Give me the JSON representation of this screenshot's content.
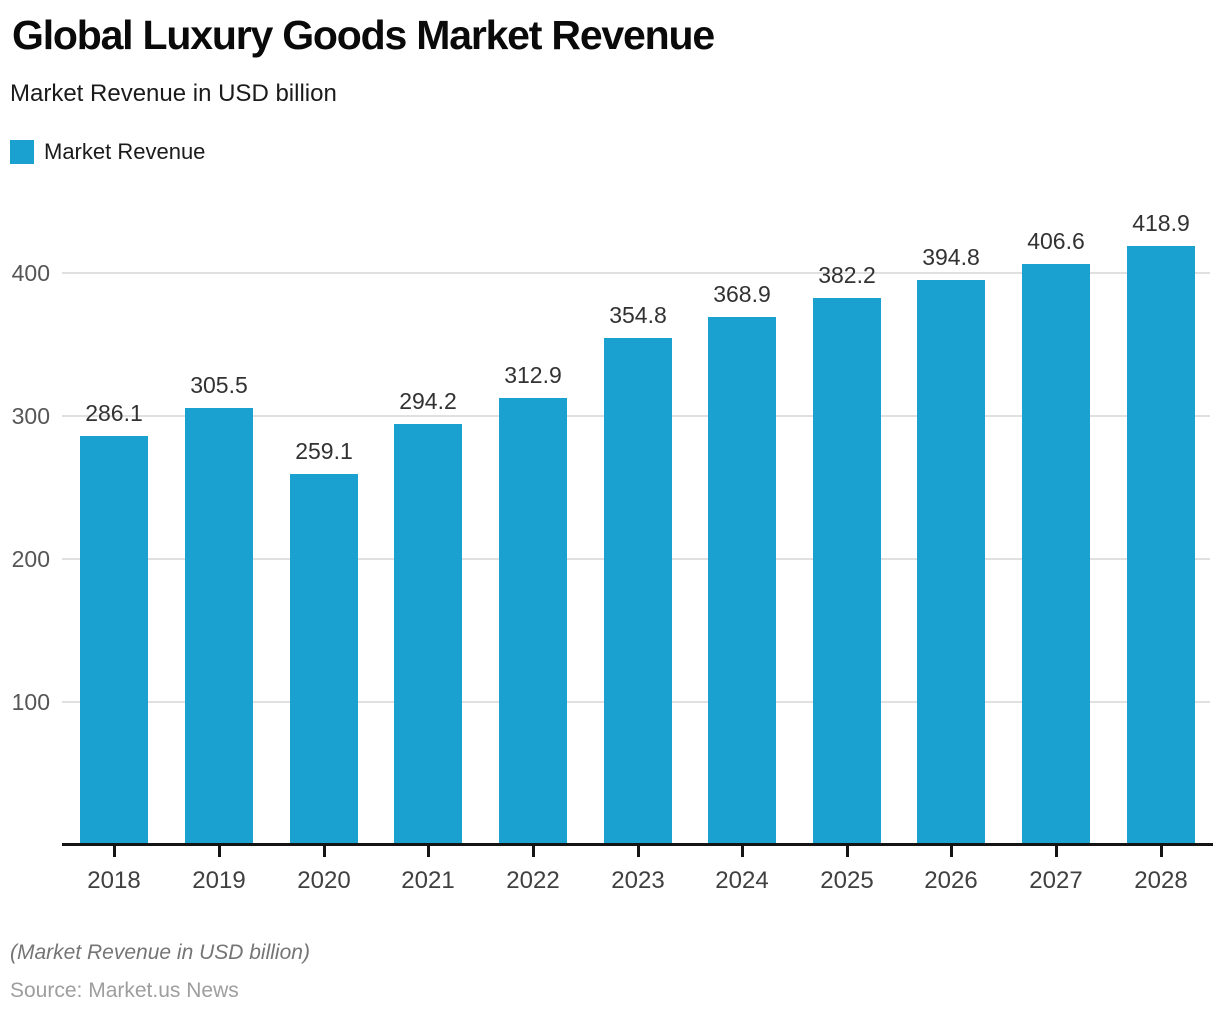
{
  "header": {
    "title": "Global Luxury Goods Market Revenue",
    "subtitle": "Market Revenue in USD billion"
  },
  "legend": {
    "items": [
      {
        "label": "Market Revenue",
        "color": "#1BA1CF"
      }
    ]
  },
  "footer": {
    "caption": "(Market Revenue in USD billion)",
    "source": "Source: Market.us News"
  },
  "chart_data": {
    "type": "bar",
    "title": "Global Luxury Goods Market Revenue",
    "subtitle": "Market Revenue in USD billion",
    "categories": [
      "2018",
      "2019",
      "2020",
      "2021",
      "2022",
      "2023",
      "2024",
      "2025",
      "2026",
      "2027",
      "2028"
    ],
    "series": [
      {
        "name": "Market Revenue",
        "color": "#1BA1CF",
        "values": [
          286.1,
          305.5,
          259.1,
          294.2,
          312.9,
          354.8,
          368.9,
          382.2,
          394.8,
          406.6,
          418.9
        ]
      }
    ],
    "xlabel": "",
    "ylabel": "Market Revenue in USD billion",
    "ylim": [
      0,
      430
    ],
    "yticks": [
      100,
      200,
      300,
      400
    ],
    "grid": true,
    "value_labels_shown": true,
    "legend_position": "top-left",
    "colors": {
      "bar": "#1BA1CF",
      "grid": "#e0e0e0",
      "axis": "#141414",
      "value_label": "#323232",
      "y_tick_label": "#565656",
      "x_tick_label": "#404040"
    }
  }
}
